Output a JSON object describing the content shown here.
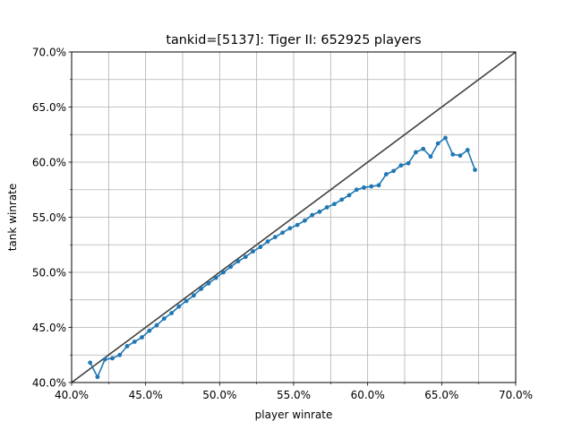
{
  "chart_data": {
    "type": "line",
    "title": "tankid=[5137]: Tiger II: 652925 players",
    "xlabel": "player winrate",
    "ylabel": "tank winrate",
    "xlim": [
      0.4,
      0.7
    ],
    "ylim": [
      0.4,
      0.7
    ],
    "x_ticks": [
      0.4,
      0.45,
      0.5,
      0.55,
      0.6,
      0.65,
      0.7
    ],
    "y_ticks": [
      0.4,
      0.45,
      0.5,
      0.55,
      0.6,
      0.65,
      0.7
    ],
    "x_tick_labels": [
      "40.0%",
      "45.0%",
      "50.0%",
      "55.0%",
      "60.0%",
      "65.0%",
      "70.0%"
    ],
    "y_tick_labels": [
      "40.0%",
      "45.0%",
      "50.0%",
      "55.0%",
      "60.0%",
      "65.0%",
      "70.0%"
    ],
    "grid": true,
    "colors": {
      "series": "#1f77b4",
      "reference": "#404040",
      "grid": "#b0b0b0"
    },
    "reference_line": {
      "x": [
        0.4,
        0.7
      ],
      "y": [
        0.4,
        0.7
      ]
    },
    "series": [
      {
        "x": [
          0.4125,
          0.4175,
          0.4225,
          0.4275,
          0.4325,
          0.4375,
          0.4425,
          0.4475,
          0.4525,
          0.4575,
          0.4625,
          0.4675,
          0.4725,
          0.4775,
          0.4825,
          0.4875,
          0.4925,
          0.4975,
          0.5025,
          0.5075,
          0.5125,
          0.5175,
          0.5225,
          0.5275,
          0.5325,
          0.5375,
          0.5425,
          0.5475,
          0.5525,
          0.5575,
          0.5625,
          0.5675,
          0.5725,
          0.5775,
          0.5825,
          0.5875,
          0.5925,
          0.5975,
          0.6025,
          0.6075,
          0.6125,
          0.6175,
          0.6225,
          0.6275,
          0.6325,
          0.6375,
          0.6425,
          0.6475,
          0.6525,
          0.6575,
          0.6625,
          0.6675,
          0.6725
        ],
        "y": [
          0.418,
          0.405,
          0.421,
          0.422,
          0.425,
          0.433,
          0.437,
          0.441,
          0.447,
          0.452,
          0.458,
          0.463,
          0.469,
          0.474,
          0.479,
          0.485,
          0.49,
          0.495,
          0.5,
          0.505,
          0.51,
          0.514,
          0.519,
          0.523,
          0.528,
          0.532,
          0.536,
          0.54,
          0.543,
          0.547,
          0.552,
          0.555,
          0.559,
          0.562,
          0.566,
          0.57,
          0.575,
          0.577,
          0.578,
          0.579,
          0.589,
          0.592,
          0.597,
          0.599,
          0.609,
          0.612,
          0.605,
          0.617,
          0.622,
          0.607,
          0.606,
          0.611,
          0.593
        ]
      }
    ]
  }
}
